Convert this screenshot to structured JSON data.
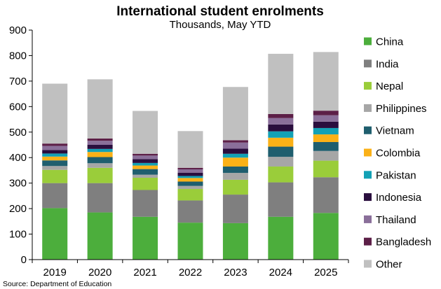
{
  "chart_data": {
    "type": "bar",
    "stacked": true,
    "title": "International student enrolments",
    "subtitle": "Thousands, May YTD",
    "source": "Source: Department of Education",
    "categories": [
      "2019",
      "2020",
      "2021",
      "2022",
      "2023",
      "2024",
      "2025"
    ],
    "ylim": [
      0,
      900
    ],
    "yticks": [
      0,
      100,
      200,
      300,
      400,
      500,
      600,
      700,
      800,
      900
    ],
    "grid": false,
    "legend": "right",
    "series": [
      {
        "name": "China",
        "color": "#4cae3c",
        "values": [
          202,
          185,
          168,
          145,
          143,
          168,
          183
        ]
      },
      {
        "name": "India",
        "color": "#7f7f7f",
        "values": [
          98,
          115,
          105,
          87,
          112,
          135,
          140
        ]
      },
      {
        "name": "Nepal",
        "color": "#9acd3a",
        "values": [
          52,
          60,
          48,
          45,
          58,
          62,
          65
        ]
      },
      {
        "name": "Philippines",
        "color": "#a6a6a6",
        "values": [
          15,
          18,
          12,
          12,
          27,
          38,
          38
        ]
      },
      {
        "name": "Vietnam",
        "color": "#1f5e6e",
        "values": [
          22,
          24,
          22,
          17,
          25,
          40,
          35
        ]
      },
      {
        "name": "Colombia",
        "color": "#fbb117",
        "values": [
          15,
          20,
          14,
          14,
          35,
          35,
          30
        ]
      },
      {
        "name": "Pakistan",
        "color": "#13a1b5",
        "values": [
          12,
          12,
          10,
          8,
          15,
          25,
          25
        ]
      },
      {
        "name": "Indonesia",
        "color": "#2a0e3e",
        "values": [
          14,
          16,
          15,
          13,
          20,
          27,
          25
        ]
      },
      {
        "name": "Thailand",
        "color": "#8a6f9a",
        "values": [
          16,
          16,
          14,
          13,
          24,
          25,
          25
        ]
      },
      {
        "name": "Bangladesh",
        "color": "#5c1f47",
        "values": [
          9,
          9,
          7,
          6,
          9,
          16,
          18
        ]
      },
      {
        "name": "Other",
        "color": "#c0c0c0",
        "values": [
          235,
          232,
          168,
          144,
          209,
          236,
          230
        ]
      }
    ]
  }
}
